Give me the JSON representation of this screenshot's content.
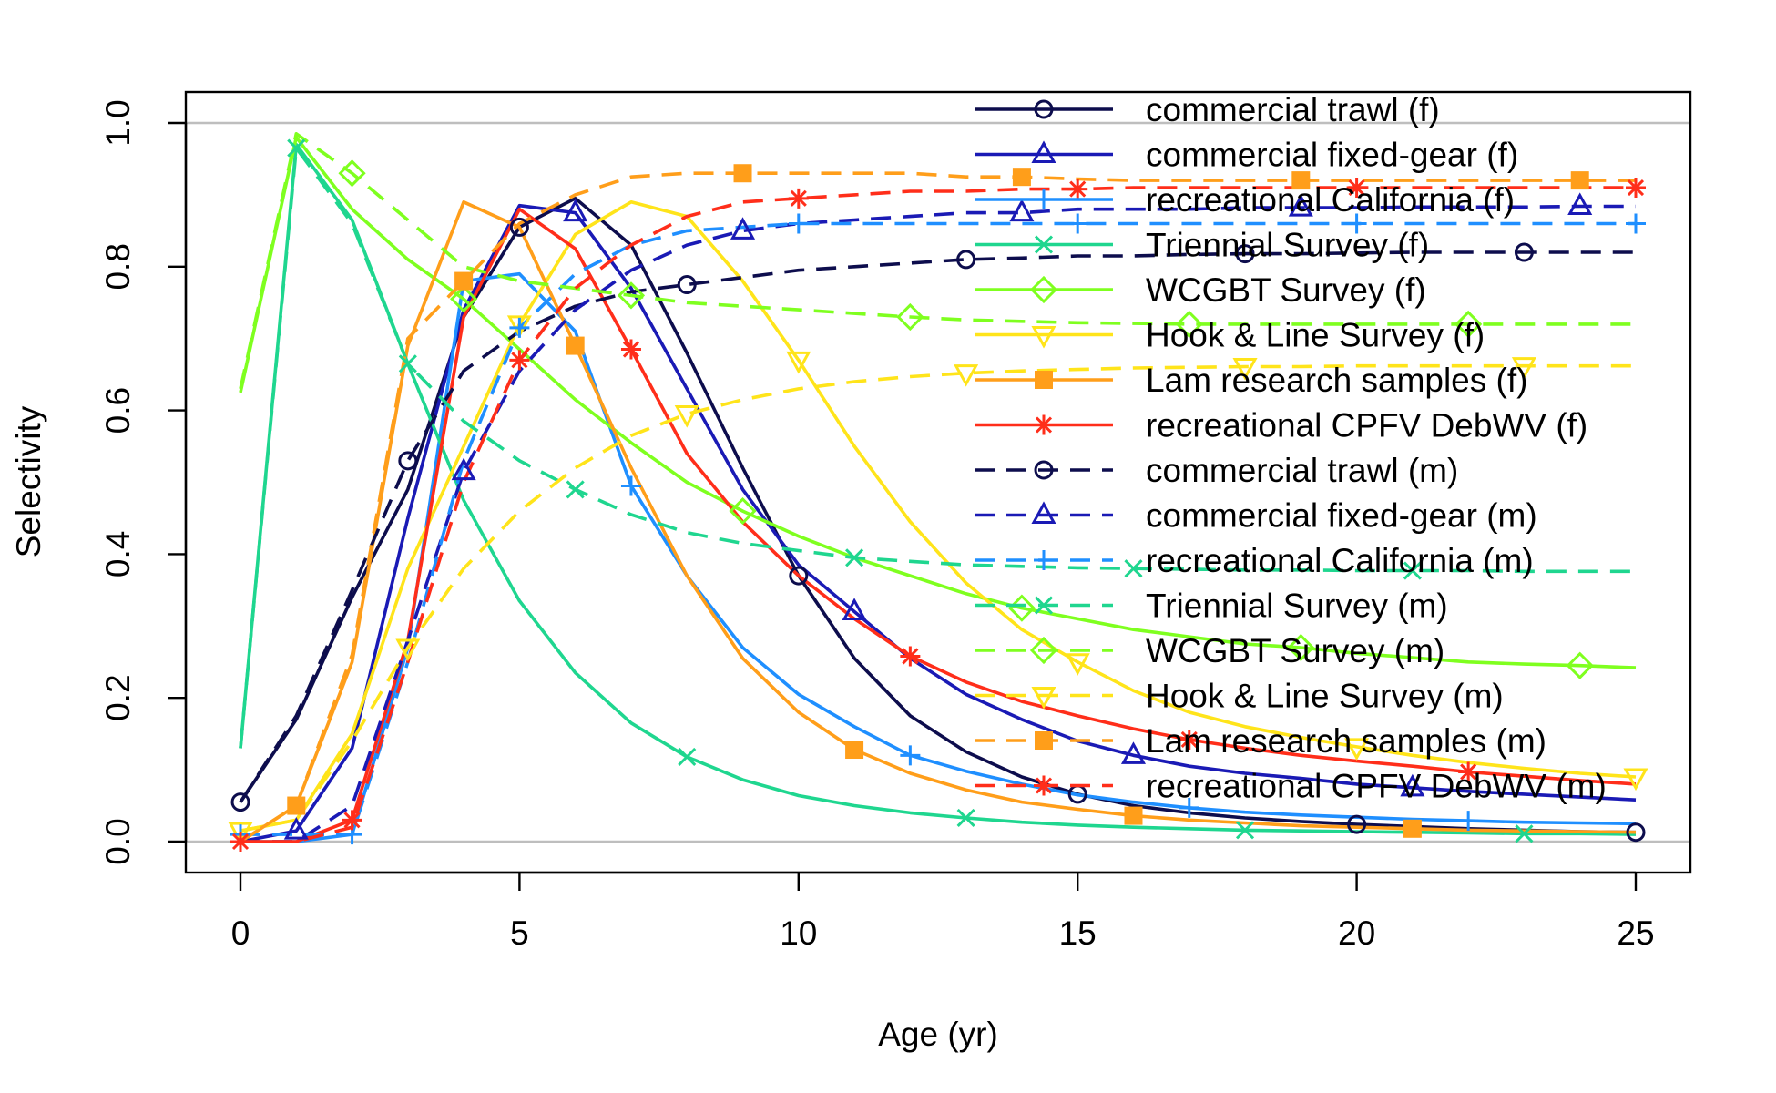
{
  "chart_data": {
    "type": "line",
    "xlabel": "Age (yr)",
    "ylabel": "Selectivity",
    "xlim": [
      0,
      25
    ],
    "ylim": [
      0,
      1
    ],
    "x_ticks": [
      0,
      5,
      10,
      15,
      20,
      25
    ],
    "y_ticks": [
      0.0,
      0.2,
      0.4,
      0.6,
      0.8,
      1.0
    ],
    "x_tick_labels": [
      "0",
      "5",
      "10",
      "15",
      "20",
      "25"
    ],
    "y_tick_labels": [
      "0.0",
      "0.2",
      "0.4",
      "0.6",
      "0.8",
      "1.0"
    ],
    "reference_lines": [
      0,
      1
    ],
    "grid": false,
    "legend_position": "top-right",
    "x": [
      0,
      1,
      2,
      3,
      4,
      5,
      6,
      7,
      8,
      9,
      10,
      11,
      12,
      13,
      14,
      15,
      16,
      17,
      18,
      19,
      20,
      21,
      22,
      23,
      24,
      25
    ],
    "series": [
      {
        "name": "commercial trawl (f)",
        "color": "#0d0d4d",
        "dash": false,
        "marker": "circle",
        "marker_offset": 0,
        "values": [
          0.055,
          0.17,
          0.34,
          0.49,
          0.73,
          0.855,
          0.895,
          0.83,
          0.68,
          0.52,
          0.37,
          0.255,
          0.175,
          0.125,
          0.09,
          0.066,
          0.05,
          0.04,
          0.033,
          0.028,
          0.024,
          0.021,
          0.018,
          0.016,
          0.014,
          0.013
        ]
      },
      {
        "name": "commercial fixed-gear (f)",
        "color": "#1a1ab5",
        "dash": false,
        "marker": "triangle",
        "marker_offset": 1,
        "values": [
          0.0,
          0.015,
          0.13,
          0.45,
          0.74,
          0.885,
          0.875,
          0.77,
          0.63,
          0.49,
          0.385,
          0.32,
          0.255,
          0.205,
          0.17,
          0.14,
          0.12,
          0.105,
          0.095,
          0.088,
          0.08,
          0.075,
          0.07,
          0.066,
          0.062,
          0.058
        ]
      },
      {
        "name": "recreational California (f)",
        "color": "#1f8fff",
        "dash": false,
        "marker": "plus",
        "marker_offset": 2,
        "values": [
          0.0,
          0.0,
          0.01,
          0.27,
          0.78,
          0.79,
          0.71,
          0.495,
          0.37,
          0.27,
          0.205,
          0.16,
          0.12,
          0.098,
          0.08,
          0.065,
          0.055,
          0.047,
          0.041,
          0.037,
          0.034,
          0.031,
          0.029,
          0.027,
          0.026,
          0.025
        ]
      },
      {
        "name": "Triennial Survey (f)",
        "color": "#1fd68f",
        "dash": false,
        "marker": "x",
        "marker_offset": 3,
        "values": [
          0.13,
          0.97,
          0.865,
          0.665,
          0.475,
          0.335,
          0.235,
          0.165,
          0.118,
          0.086,
          0.064,
          0.05,
          0.04,
          0.033,
          0.027,
          0.023,
          0.02,
          0.018,
          0.016,
          0.015,
          0.014,
          0.013,
          0.012,
          0.011,
          0.011,
          0.01
        ]
      },
      {
        "name": "WCGBT Survey (f)",
        "color": "#7fff1f",
        "dash": false,
        "marker": "diamond",
        "marker_offset": 4,
        "values": [
          0.625,
          0.98,
          0.88,
          0.81,
          0.755,
          0.685,
          0.615,
          0.555,
          0.5,
          0.46,
          0.425,
          0.395,
          0.37,
          0.345,
          0.325,
          0.31,
          0.295,
          0.285,
          0.275,
          0.27,
          0.262,
          0.256,
          0.25,
          0.247,
          0.245,
          0.242
        ]
      },
      {
        "name": "Hook & Line Survey (f)",
        "color": "#ffe41a",
        "dash": false,
        "marker": "triangle-down",
        "marker_offset": 0,
        "values": [
          0.015,
          0.03,
          0.15,
          0.38,
          0.55,
          0.72,
          0.845,
          0.89,
          0.87,
          0.78,
          0.67,
          0.55,
          0.445,
          0.36,
          0.295,
          0.25,
          0.21,
          0.18,
          0.16,
          0.145,
          0.132,
          0.12,
          0.11,
          0.102,
          0.095,
          0.09
        ]
      },
      {
        "name": "Lam research samples (f)",
        "color": "#ff9e1a",
        "dash": false,
        "marker": "square",
        "marker_offset": 1,
        "values": [
          0.0,
          0.05,
          0.25,
          0.69,
          0.89,
          0.855,
          0.69,
          0.52,
          0.37,
          0.255,
          0.18,
          0.128,
          0.095,
          0.072,
          0.055,
          0.045,
          0.036,
          0.03,
          0.026,
          0.022,
          0.02,
          0.018,
          0.016,
          0.015,
          0.014,
          0.013
        ]
      },
      {
        "name": "recreational CPFV DebWV (f)",
        "color": "#ff2e1a",
        "dash": false,
        "marker": "star",
        "marker_offset": 2,
        "values": [
          0.0,
          0.0,
          0.03,
          0.28,
          0.73,
          0.88,
          0.825,
          0.685,
          0.54,
          0.445,
          0.37,
          0.31,
          0.258,
          0.222,
          0.195,
          0.175,
          0.157,
          0.142,
          0.13,
          0.12,
          0.112,
          0.105,
          0.097,
          0.091,
          0.085,
          0.08
        ]
      },
      {
        "name": "commercial trawl (m)",
        "color": "#0d0d4d",
        "dash": true,
        "marker": "circle",
        "marker_offset": 3,
        "values": [
          0.055,
          0.175,
          0.35,
          0.53,
          0.655,
          0.71,
          0.745,
          0.765,
          0.775,
          0.785,
          0.795,
          0.8,
          0.805,
          0.81,
          0.812,
          0.815,
          0.815,
          0.817,
          0.818,
          0.818,
          0.819,
          0.82,
          0.82,
          0.82,
          0.82,
          0.82
        ]
      },
      {
        "name": "commercial fixed-gear (m)",
        "color": "#1a1ab5",
        "dash": true,
        "marker": "triangle",
        "marker_offset": 4,
        "values": [
          0.0,
          0.0,
          0.05,
          0.28,
          0.515,
          0.655,
          0.74,
          0.795,
          0.83,
          0.85,
          0.86,
          0.865,
          0.87,
          0.875,
          0.875,
          0.88,
          0.88,
          0.88,
          0.882,
          0.882,
          0.882,
          0.883,
          0.883,
          0.883,
          0.884,
          0.884
        ]
      },
      {
        "name": "recreational California (m)",
        "color": "#1f8fff",
        "dash": true,
        "marker": "plus",
        "marker_offset": 0,
        "values": [
          0.01,
          0.01,
          0.01,
          0.25,
          0.53,
          0.715,
          0.79,
          0.83,
          0.85,
          0.855,
          0.86,
          0.86,
          0.86,
          0.86,
          0.86,
          0.86,
          0.86,
          0.86,
          0.86,
          0.86,
          0.86,
          0.86,
          0.86,
          0.86,
          0.86,
          0.86
        ]
      },
      {
        "name": "Triennial Survey (m)",
        "color": "#1fd68f",
        "dash": true,
        "marker": "x",
        "marker_offset": 1,
        "values": [
          0.13,
          0.965,
          0.86,
          0.665,
          0.585,
          0.53,
          0.49,
          0.455,
          0.43,
          0.415,
          0.405,
          0.395,
          0.39,
          0.385,
          0.383,
          0.381,
          0.38,
          0.379,
          0.378,
          0.378,
          0.377,
          0.377,
          0.377,
          0.376,
          0.376,
          0.376
        ]
      },
      {
        "name": "WCGBT Survey (m)",
        "color": "#7fff1f",
        "dash": true,
        "marker": "diamond",
        "marker_offset": 2,
        "values": [
          0.63,
          0.985,
          0.93,
          0.865,
          0.8,
          0.78,
          0.77,
          0.76,
          0.75,
          0.745,
          0.74,
          0.735,
          0.73,
          0.726,
          0.724,
          0.722,
          0.721,
          0.72,
          0.72,
          0.72,
          0.72,
          0.72,
          0.72,
          0.72,
          0.72,
          0.72
        ]
      },
      {
        "name": "Hook & Line Survey (m)",
        "color": "#ffe41a",
        "dash": true,
        "marker": "triangle-down",
        "marker_offset": 3,
        "values": [
          0.015,
          0.03,
          0.14,
          0.27,
          0.38,
          0.46,
          0.52,
          0.565,
          0.595,
          0.615,
          0.63,
          0.64,
          0.647,
          0.652,
          0.655,
          0.657,
          0.659,
          0.66,
          0.661,
          0.661,
          0.662,
          0.662,
          0.662,
          0.662,
          0.662,
          0.662
        ]
      },
      {
        "name": "Lam research samples (m)",
        "color": "#ff9e1a",
        "dash": true,
        "marker": "square",
        "marker_offset": 4,
        "values": [
          0.0,
          0.05,
          0.26,
          0.7,
          0.78,
          0.86,
          0.9,
          0.925,
          0.93,
          0.93,
          0.93,
          0.93,
          0.93,
          0.925,
          0.925,
          0.922,
          0.92,
          0.92,
          0.92,
          0.92,
          0.92,
          0.92,
          0.92,
          0.92,
          0.92,
          0.92
        ]
      },
      {
        "name": "recreational CPFV DebWV (m)",
        "color": "#ff2e1a",
        "dash": true,
        "marker": "star",
        "marker_offset": 0,
        "values": [
          0.0,
          0.0,
          0.02,
          0.25,
          0.5,
          0.67,
          0.77,
          0.83,
          0.87,
          0.89,
          0.895,
          0.9,
          0.905,
          0.905,
          0.908,
          0.908,
          0.91,
          0.91,
          0.91,
          0.91,
          0.91,
          0.91,
          0.91,
          0.91,
          0.91,
          0.91
        ]
      }
    ]
  }
}
